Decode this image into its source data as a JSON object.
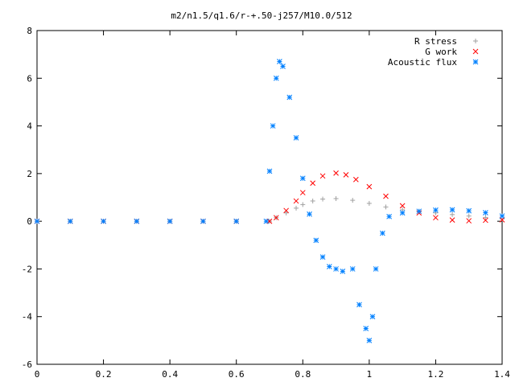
{
  "chart_data": {
    "type": "scatter",
    "title": "m2/n1.5/q1.6/r-+.50-j257/M10.0/512",
    "xlabel": "",
    "ylabel": "",
    "xlim": [
      0,
      1.4
    ],
    "ylim": [
      -6,
      8
    ],
    "x_ticks": [
      "0",
      "0.2",
      "0.4",
      "0.6",
      "0.8",
      "1",
      "1.2",
      "1.4"
    ],
    "y_ticks": [
      "-6",
      "-4",
      "-2",
      "0",
      "2",
      "4",
      "6",
      "8"
    ],
    "legend_position": "top-right",
    "grid": false,
    "series": [
      {
        "name": "R stress",
        "marker": "+",
        "color": "#a0a0a0",
        "x": [
          0,
          0.1,
          0.2,
          0.3,
          0.4,
          0.5,
          0.6,
          0.7,
          0.72,
          0.75,
          0.78,
          0.8,
          0.83,
          0.86,
          0.9,
          0.95,
          1.0,
          1.05,
          1.1,
          1.15,
          1.2,
          1.25,
          1.3,
          1.35,
          1.4
        ],
        "y": [
          0,
          0,
          0,
          0,
          0,
          0,
          0,
          0,
          0.15,
          0.35,
          0.55,
          0.7,
          0.85,
          0.93,
          0.95,
          0.88,
          0.75,
          0.6,
          0.48,
          0.4,
          0.35,
          0.28,
          0.22,
          0.16,
          0.1
        ]
      },
      {
        "name": "G work",
        "marker": "x",
        "color": "#ff0000",
        "x": [
          0,
          0.1,
          0.2,
          0.3,
          0.4,
          0.5,
          0.6,
          0.7,
          0.72,
          0.75,
          0.78,
          0.8,
          0.83,
          0.86,
          0.9,
          0.93,
          0.96,
          1.0,
          1.05,
          1.1,
          1.15,
          1.2,
          1.25,
          1.3,
          1.35,
          1.4
        ],
        "y": [
          0,
          0,
          0,
          0,
          0,
          0,
          0,
          0,
          0.15,
          0.45,
          0.85,
          1.2,
          1.6,
          1.9,
          2.02,
          1.95,
          1.75,
          1.45,
          1.05,
          0.65,
          0.35,
          0.15,
          0.05,
          0.02,
          0.04,
          0.06
        ]
      },
      {
        "name": "Acoustic flux",
        "marker": "*",
        "color": "#0080ff",
        "x": [
          0,
          0.1,
          0.2,
          0.3,
          0.4,
          0.5,
          0.6,
          0.69,
          0.7,
          0.71,
          0.72,
          0.73,
          0.74,
          0.76,
          0.78,
          0.8,
          0.82,
          0.84,
          0.86,
          0.88,
          0.9,
          0.92,
          0.95,
          0.97,
          0.99,
          1.0,
          1.01,
          1.02,
          1.04,
          1.06,
          1.1,
          1.15,
          1.2,
          1.25,
          1.3,
          1.35,
          1.4
        ],
        "y": [
          0,
          0,
          0,
          0,
          0,
          0,
          0,
          0,
          2.1,
          4.0,
          6.0,
          6.7,
          6.5,
          5.2,
          3.5,
          1.8,
          0.3,
          -0.8,
          -1.5,
          -1.9,
          -2.0,
          -2.1,
          -2.0,
          -3.5,
          -4.5,
          -5.0,
          -4.0,
          -2.0,
          -0.5,
          0.2,
          0.35,
          0.42,
          0.47,
          0.48,
          0.44,
          0.36,
          0.22
        ]
      }
    ]
  }
}
